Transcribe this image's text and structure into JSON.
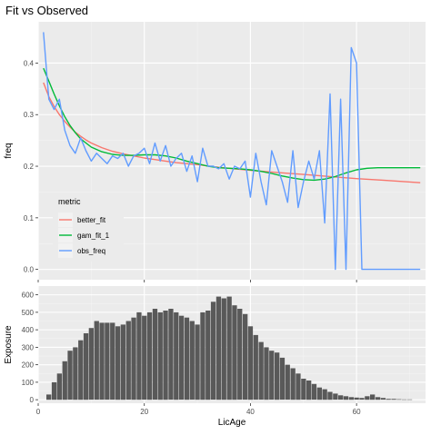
{
  "title": "Fit vs Observed",
  "colors": {
    "panel_bg": "#ebebeb",
    "grid_major": "#ffffff",
    "grid_minor": "#f4f4f4",
    "bar": "#595959",
    "better_fit": "#f8766d",
    "gam_fit_1": "#00ba38",
    "obs_freq": "#619cff"
  },
  "chart_data": [
    {
      "type": "line",
      "title": "Fit vs Observed",
      "ylabel": "freq",
      "xlim": [
        0,
        73
      ],
      "ylim": [
        -0.02,
        0.48
      ],
      "x_ticks": [
        20,
        40,
        60
      ],
      "y_ticks": [
        "0.0",
        "0.1",
        "0.2",
        "0.3",
        "0.4"
      ],
      "y_tick_values": [
        0.0,
        0.1,
        0.2,
        0.3,
        0.4
      ],
      "grid": true,
      "legend": {
        "title": "metric",
        "placement": "bottom-left inside",
        "entries": [
          "better_fit",
          "gam_fit_1",
          "obs_freq"
        ]
      },
      "series": [
        {
          "name": "better_fit",
          "x": [
            1,
            2,
            3,
            4,
            5,
            6,
            7,
            8,
            9,
            10,
            12,
            14,
            16,
            18,
            20,
            22,
            24,
            26,
            28,
            30,
            33,
            36,
            40,
            45,
            50,
            55,
            60,
            65,
            72
          ],
          "y": [
            0.362,
            0.335,
            0.316,
            0.3,
            0.287,
            0.276,
            0.266,
            0.258,
            0.251,
            0.245,
            0.236,
            0.229,
            0.224,
            0.22,
            0.216,
            0.213,
            0.21,
            0.207,
            0.205,
            0.203,
            0.199,
            0.196,
            0.192,
            0.188,
            0.184,
            0.18,
            0.176,
            0.173,
            0.168
          ]
        },
        {
          "name": "gam_fit_1",
          "x": [
            1,
            2,
            3,
            4,
            5,
            6,
            7,
            8,
            10,
            12,
            14,
            16,
            18,
            20,
            22,
            24,
            26,
            28,
            30,
            32,
            34,
            36,
            38,
            40,
            42,
            44,
            46,
            48,
            50,
            52,
            54,
            56,
            58,
            60,
            62,
            64,
            66,
            68,
            70,
            72
          ],
          "y": [
            0.39,
            0.365,
            0.34,
            0.317,
            0.296,
            0.279,
            0.265,
            0.253,
            0.237,
            0.228,
            0.223,
            0.221,
            0.221,
            0.222,
            0.222,
            0.22,
            0.216,
            0.21,
            0.205,
            0.2,
            0.197,
            0.196,
            0.195,
            0.193,
            0.19,
            0.186,
            0.181,
            0.177,
            0.174,
            0.173,
            0.175,
            0.18,
            0.187,
            0.193,
            0.196,
            0.197,
            0.197,
            0.197,
            0.197,
            0.197
          ]
        },
        {
          "name": "obs_freq",
          "x": [
            1,
            2,
            3,
            4,
            5,
            6,
            7,
            8,
            9,
            10,
            11,
            12,
            13,
            14,
            15,
            16,
            17,
            18,
            19,
            20,
            21,
            22,
            23,
            24,
            25,
            26,
            27,
            28,
            29,
            30,
            31,
            32,
            33,
            34,
            35,
            36,
            37,
            38,
            39,
            40,
            41,
            42,
            43,
            44,
            45,
            46,
            47,
            48,
            49,
            50,
            51,
            52,
            53,
            54,
            55,
            56,
            57,
            58,
            59,
            60,
            61,
            62,
            63,
            64,
            65,
            66,
            67,
            68,
            69,
            70,
            71,
            72
          ],
          "y": [
            0.46,
            0.33,
            0.31,
            0.33,
            0.27,
            0.24,
            0.225,
            0.255,
            0.23,
            0.21,
            0.225,
            0.215,
            0.205,
            0.22,
            0.215,
            0.225,
            0.2,
            0.22,
            0.225,
            0.235,
            0.205,
            0.245,
            0.21,
            0.24,
            0.2,
            0.215,
            0.225,
            0.19,
            0.22,
            0.17,
            0.235,
            0.2,
            0.2,
            0.195,
            0.205,
            0.175,
            0.2,
            0.195,
            0.21,
            0.14,
            0.225,
            0.17,
            0.125,
            0.23,
            0.2,
            0.17,
            0.13,
            0.23,
            0.12,
            0.17,
            0.21,
            0.175,
            0.23,
            0.09,
            0.34,
            0.0,
            0.33,
            0.0,
            0.43,
            0.4,
            0.0,
            0.0,
            0.0,
            0.0,
            0.0,
            0.0,
            0.0,
            0.0,
            0.0,
            0.0,
            0.0,
            0.0
          ]
        }
      ]
    },
    {
      "type": "bar",
      "xlabel": "LicAge",
      "ylabel": "Exposure",
      "xlim": [
        0,
        73
      ],
      "ylim": [
        -20,
        650
      ],
      "x_ticks": [
        "0",
        "20",
        "40",
        "60"
      ],
      "x_tick_values": [
        0,
        20,
        40,
        60
      ],
      "y_ticks": [
        "0",
        "100",
        "200",
        "300",
        "400",
        "500",
        "600"
      ],
      "y_tick_values": [
        0,
        100,
        200,
        300,
        400,
        500,
        600
      ],
      "grid": true,
      "x": [
        2,
        3,
        4,
        5,
        6,
        7,
        8,
        9,
        10,
        11,
        12,
        13,
        14,
        15,
        16,
        17,
        18,
        19,
        20,
        21,
        22,
        23,
        24,
        25,
        26,
        27,
        28,
        29,
        30,
        31,
        32,
        33,
        34,
        35,
        36,
        37,
        38,
        39,
        40,
        41,
        42,
        43,
        44,
        45,
        46,
        47,
        48,
        49,
        50,
        51,
        52,
        53,
        54,
        55,
        56,
        57,
        58,
        59,
        60,
        61,
        62,
        63,
        64,
        65,
        66,
        67,
        68,
        69,
        70
      ],
      "values": [
        30,
        100,
        150,
        220,
        280,
        300,
        340,
        380,
        410,
        450,
        440,
        440,
        440,
        420,
        430,
        450,
        470,
        500,
        480,
        500,
        520,
        500,
        510,
        520,
        500,
        480,
        470,
        450,
        430,
        500,
        510,
        560,
        590,
        580,
        590,
        540,
        520,
        490,
        420,
        370,
        330,
        300,
        280,
        270,
        240,
        200,
        180,
        150,
        120,
        110,
        90,
        70,
        60,
        45,
        35,
        25,
        20,
        15,
        12,
        10,
        20,
        30,
        15,
        10,
        5,
        5,
        3,
        2,
        2
      ]
    }
  ]
}
